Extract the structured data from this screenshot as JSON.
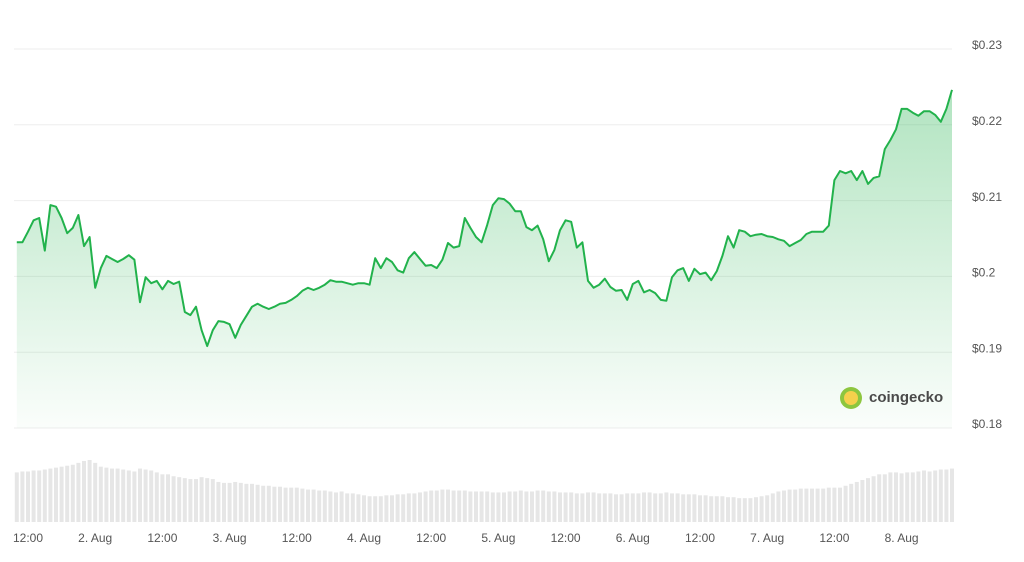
{
  "chart_data": {
    "type": "line",
    "color": "#22b24c",
    "volume_color": "#e6e6e6",
    "grid": true,
    "watermark": "coingecko",
    "xlim": [
      9.5,
      177
    ],
    "ylim": [
      0.18,
      0.23
    ],
    "xticks": [
      {
        "value": 12,
        "label": "12:00"
      },
      {
        "value": 24,
        "label": "2. Aug"
      },
      {
        "value": 36,
        "label": "12:00"
      },
      {
        "value": 48,
        "label": "3. Aug"
      },
      {
        "value": 60,
        "label": "12:00"
      },
      {
        "value": 72,
        "label": "4. Aug"
      },
      {
        "value": 84,
        "label": "12:00"
      },
      {
        "value": 96,
        "label": "5. Aug"
      },
      {
        "value": 108,
        "label": "12:00"
      },
      {
        "value": 120,
        "label": "6. Aug"
      },
      {
        "value": 132,
        "label": "12:00"
      },
      {
        "value": 144,
        "label": "7. Aug"
      },
      {
        "value": 156,
        "label": "12:00"
      },
      {
        "value": 168,
        "label": "8. Aug"
      }
    ],
    "yticks": [
      {
        "value": 0.18,
        "label": "$0.18"
      },
      {
        "value": 0.19,
        "label": "$0.19"
      },
      {
        "value": 0.2,
        "label": "$0.2"
      },
      {
        "value": 0.21,
        "label": "$0.21"
      },
      {
        "value": 0.22,
        "label": "$0.22"
      },
      {
        "value": 0.23,
        "label": "$0.23"
      }
    ],
    "x": [
      10,
      11,
      12,
      13,
      14,
      15,
      16,
      17,
      18,
      19,
      20,
      21,
      22,
      23,
      24,
      25,
      26,
      27,
      28,
      29,
      30,
      31,
      32,
      33,
      34,
      35,
      36,
      37,
      38,
      39,
      40,
      41,
      42,
      43,
      44,
      45,
      46,
      47,
      48,
      49,
      50,
      51,
      52,
      53,
      54,
      55,
      56,
      57,
      58,
      59,
      60,
      61,
      62,
      63,
      64,
      65,
      66,
      67,
      68,
      69,
      70,
      71,
      72,
      73,
      74,
      75,
      76,
      77,
      78,
      79,
      80,
      81,
      82,
      83,
      84,
      85,
      86,
      87,
      88,
      89,
      90,
      91,
      92,
      93,
      94,
      95,
      96,
      97,
      98,
      99,
      100,
      101,
      102,
      103,
      104,
      105,
      106,
      107,
      108,
      109,
      110,
      111,
      112,
      113,
      114,
      115,
      116,
      117,
      118,
      119,
      120,
      121,
      122,
      123,
      124,
      125,
      126,
      127,
      128,
      129,
      130,
      131,
      132,
      133,
      134,
      135,
      136,
      137,
      138,
      139,
      140,
      141,
      142,
      143,
      144,
      145,
      146,
      147,
      148,
      149,
      150,
      151,
      152,
      153,
      154,
      155,
      156,
      157,
      158,
      159,
      160,
      161,
      162,
      163,
      164,
      165,
      166,
      167,
      168,
      169,
      170,
      171,
      172,
      173,
      174,
      175,
      176,
      177
    ],
    "values": [
      0.2045,
      0.2045,
      0.2059,
      0.2074,
      0.2077,
      0.2034,
      0.2094,
      0.2092,
      0.2077,
      0.2057,
      0.2064,
      0.2081,
      0.204,
      0.2052,
      0.1985,
      0.2011,
      0.2027,
      0.2023,
      0.2019,
      0.2023,
      0.2028,
      0.2022,
      0.1966,
      0.1999,
      0.1991,
      0.1994,
      0.1983,
      0.1994,
      0.199,
      0.1993,
      0.1953,
      0.1949,
      0.196,
      0.1929,
      0.1908,
      0.1929,
      0.1941,
      0.194,
      0.1937,
      0.1919,
      0.1936,
      0.1948,
      0.196,
      0.1964,
      0.196,
      0.1957,
      0.196,
      0.1964,
      0.1965,
      0.1969,
      0.1974,
      0.1981,
      0.1985,
      0.1982,
      0.1985,
      0.1989,
      0.1995,
      0.1993,
      0.1993,
      0.1991,
      0.1989,
      0.1991,
      0.1991,
      0.1989,
      0.2024,
      0.2011,
      0.2024,
      0.2019,
      0.2008,
      0.2005,
      0.2024,
      0.2032,
      0.2023,
      0.2014,
      0.2015,
      0.2011,
      0.2022,
      0.2044,
      0.2038,
      0.204,
      0.2077,
      0.2064,
      0.2052,
      0.2045,
      0.2068,
      0.2094,
      0.2103,
      0.2102,
      0.2096,
      0.2086,
      0.2086,
      0.2065,
      0.2061,
      0.2067,
      0.2049,
      0.202,
      0.2035,
      0.2061,
      0.2074,
      0.2072,
      0.2038,
      0.2045,
      0.1994,
      0.1985,
      0.1989,
      0.1997,
      0.1986,
      0.1981,
      0.1982,
      0.1969,
      0.199,
      0.1994,
      0.1979,
      0.1982,
      0.1978,
      0.1969,
      0.1968,
      0.1999,
      0.2008,
      0.2011,
      0.1994,
      0.201,
      0.2003,
      0.2005,
      0.1995,
      0.2007,
      0.2027,
      0.2053,
      0.2038,
      0.2061,
      0.2059,
      0.2053,
      0.2055,
      0.2056,
      0.2053,
      0.2052,
      0.2049,
      0.2047,
      0.204,
      0.2044,
      0.2048,
      0.2056,
      0.2059,
      0.2059,
      0.2059,
      0.2067,
      0.2127,
      0.2139,
      0.2136,
      0.2139,
      0.2127,
      0.2139,
      0.2122,
      0.213,
      0.2132,
      0.2168,
      0.218,
      0.2194,
      0.2221,
      0.2221,
      0.2216,
      0.2212,
      0.2218,
      0.2218,
      0.2213,
      0.2204,
      0.2221,
      0.2246
    ],
    "volume": [
      52,
      53,
      53,
      54,
      54,
      55,
      56,
      57,
      58,
      59,
      60,
      62,
      64,
      65,
      62,
      58,
      57,
      56,
      56,
      55,
      54,
      53,
      56,
      55,
      54,
      52,
      50,
      50,
      48,
      47,
      46,
      45,
      45,
      47,
      46,
      45,
      42,
      41,
      41,
      42,
      41,
      40,
      40,
      39,
      38,
      38,
      37,
      37,
      36,
      36,
      36,
      35,
      34,
      34,
      33,
      33,
      32,
      31,
      32,
      30,
      30,
      29,
      28,
      27,
      27,
      27,
      28,
      28,
      29,
      29,
      30,
      30,
      31,
      32,
      33,
      33,
      34,
      34,
      33,
      33,
      33,
      32,
      32,
      32,
      32,
      31,
      31,
      31,
      32,
      32,
      33,
      32,
      32,
      33,
      33,
      32,
      32,
      31,
      31,
      31,
      30,
      30,
      31,
      31,
      30,
      30,
      30,
      29,
      29,
      30,
      30,
      30,
      31,
      31,
      30,
      30,
      31,
      30,
      30,
      29,
      29,
      29,
      28,
      28,
      27,
      27,
      27,
      26,
      26,
      25,
      25,
      25,
      26,
      27,
      28,
      30,
      32,
      33,
      34,
      34,
      35,
      35,
      35,
      35,
      35,
      36,
      36,
      36,
      38,
      40,
      42,
      44,
      46,
      48,
      50,
      50,
      52,
      52,
      51,
      52,
      52,
      53,
      54,
      53,
      54,
      55,
      55,
      56
    ]
  }
}
